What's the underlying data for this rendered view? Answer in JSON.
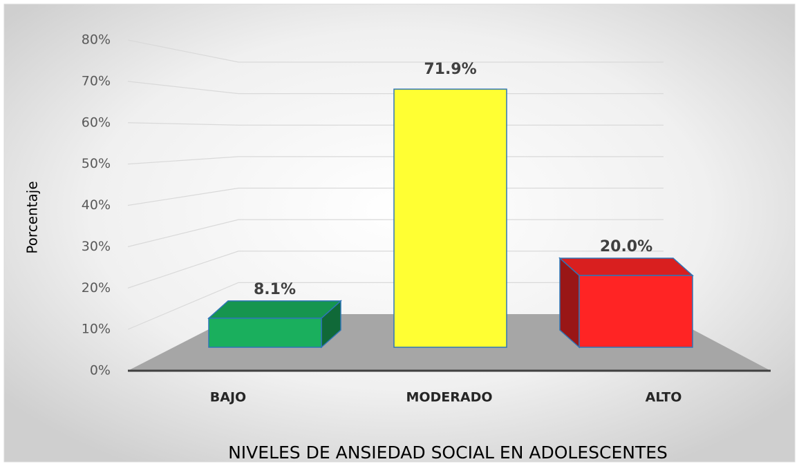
{
  "chart_data": {
    "type": "bar3d",
    "y_label": "Porcentaje",
    "x_label": "NIVELES DE ANSIEDAD SOCIAL EN ADOLESCENTES",
    "categories": [
      "BAJO",
      "MODERADO",
      "ALTO"
    ],
    "values": [
      8.1,
      71.9,
      20.0
    ],
    "value_labels": [
      "8.1%",
      "71.9%",
      "20.0%"
    ],
    "colors": [
      "#1aaf5d",
      "#ffff33",
      "#ff2424"
    ],
    "ylim": [
      0,
      80
    ],
    "yticks": [
      {
        "value": 0,
        "label": "0%"
      },
      {
        "value": 10,
        "label": "10%"
      },
      {
        "value": 20,
        "label": "20%"
      },
      {
        "value": 30,
        "label": "30%"
      },
      {
        "value": 40,
        "label": "40%"
      },
      {
        "value": 50,
        "label": "50%"
      },
      {
        "value": 60,
        "label": "60%"
      },
      {
        "value": 70,
        "label": "70%"
      },
      {
        "value": 80,
        "label": "80%"
      }
    ],
    "grid": true
  }
}
